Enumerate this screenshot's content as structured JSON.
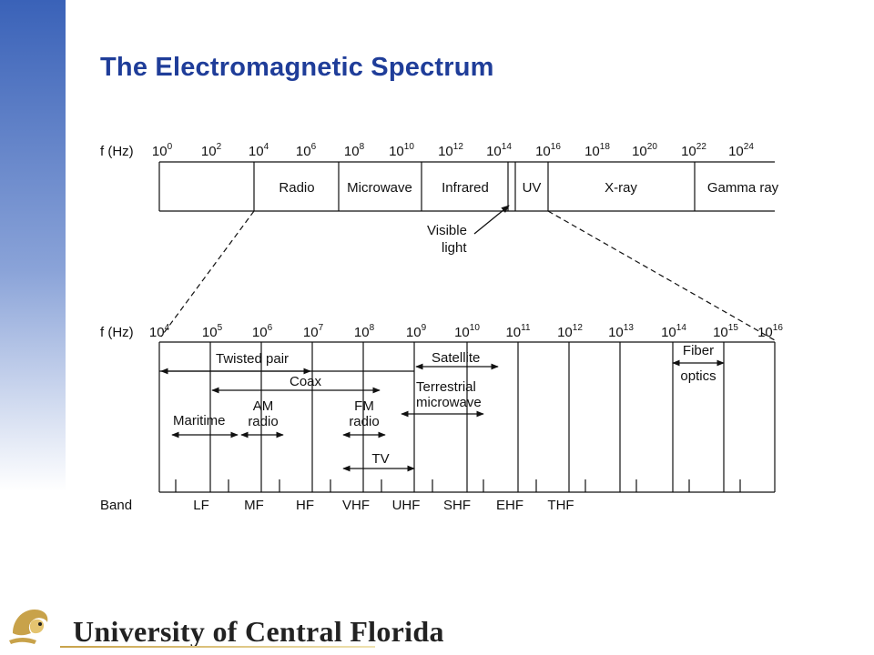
{
  "slide": {
    "title": "The Electromagnetic Spectrum",
    "footer": "University of Central Florida"
  },
  "top_spectrum": {
    "axis_label": "f (Hz)",
    "ticks": [
      {
        "base": "10",
        "exp": "0"
      },
      {
        "base": "10",
        "exp": "2"
      },
      {
        "base": "10",
        "exp": "4"
      },
      {
        "base": "10",
        "exp": "6"
      },
      {
        "base": "10",
        "exp": "8"
      },
      {
        "base": "10",
        "exp": "10"
      },
      {
        "base": "10",
        "exp": "12"
      },
      {
        "base": "10",
        "exp": "14"
      },
      {
        "base": "10",
        "exp": "16"
      },
      {
        "base": "10",
        "exp": "18"
      },
      {
        "base": "10",
        "exp": "20"
      },
      {
        "base": "10",
        "exp": "22"
      },
      {
        "base": "10",
        "exp": "24"
      }
    ],
    "regions": [
      "Radio",
      "Microwave",
      "Infrared",
      "UV",
      "X-ray",
      "Gamma ray"
    ],
    "visible_label": [
      "Visible",
      "light"
    ]
  },
  "bottom_spectrum": {
    "axis_label": "f (Hz)",
    "ticks": [
      {
        "base": "10",
        "exp": "4"
      },
      {
        "base": "10",
        "exp": "5"
      },
      {
        "base": "10",
        "exp": "6"
      },
      {
        "base": "10",
        "exp": "7"
      },
      {
        "base": "10",
        "exp": "8"
      },
      {
        "base": "10",
        "exp": "9"
      },
      {
        "base": "10",
        "exp": "10"
      },
      {
        "base": "10",
        "exp": "11"
      },
      {
        "base": "10",
        "exp": "12"
      },
      {
        "base": "10",
        "exp": "13"
      },
      {
        "base": "10",
        "exp": "14"
      },
      {
        "base": "10",
        "exp": "15"
      },
      {
        "base": "10",
        "exp": "16"
      }
    ],
    "media": {
      "twisted_pair": "Twisted pair",
      "coax": "Coax",
      "satellite": "Satellite",
      "terrestrial": [
        "Terrestrial",
        "microwave"
      ],
      "fiber": [
        "Fiber",
        "optics"
      ],
      "maritime": "Maritime",
      "am_radio": [
        "AM",
        "radio"
      ],
      "fm_radio": [
        "FM",
        "radio"
      ],
      "tv": "TV"
    },
    "band_label": "Band",
    "bands": [
      "LF",
      "MF",
      "HF",
      "VHF",
      "UHF",
      "SHF",
      "EHF",
      "THF"
    ]
  },
  "colors": {
    "title": "#1f3d99",
    "sidebar_top": "#3a62b8",
    "logo_gold": "#c8a24a"
  }
}
